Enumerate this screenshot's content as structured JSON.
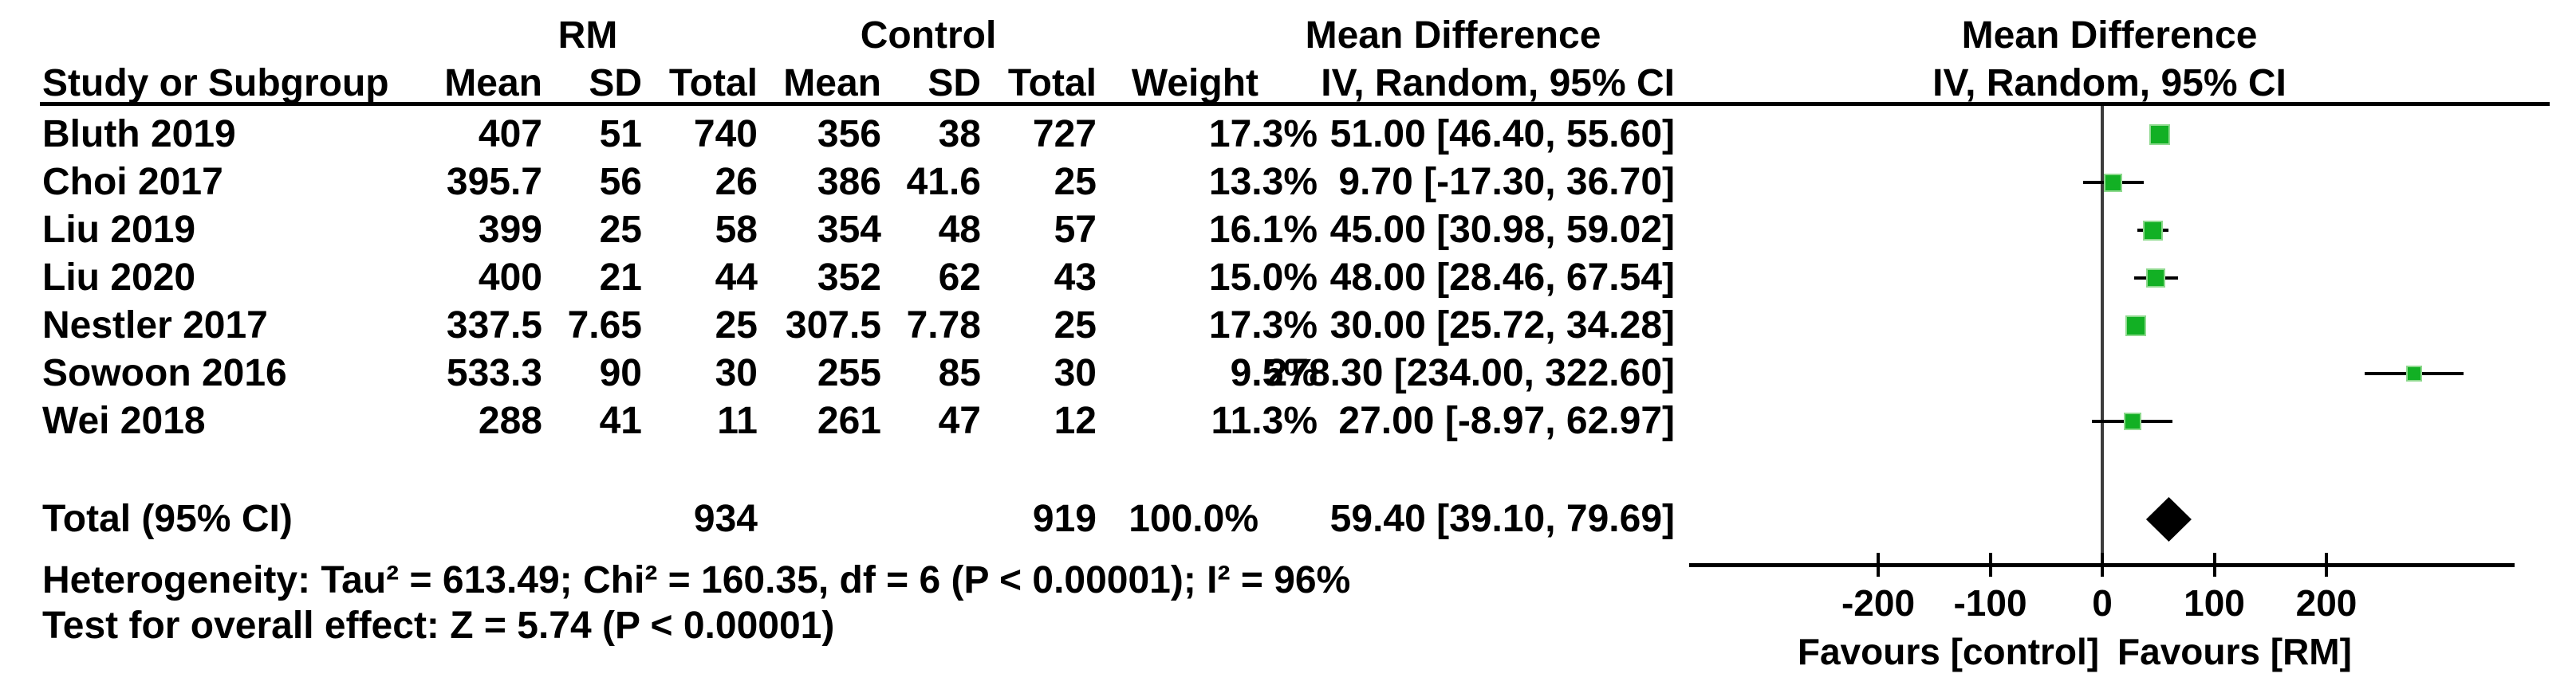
{
  "columns": {
    "study": "Study or Subgroup",
    "mean": "Mean",
    "sd": "SD",
    "total": "Total",
    "weight": "Weight",
    "effect": "Mean Difference",
    "method": "IV, Random, 95% CI"
  },
  "colors": {
    "marker_green": "#12b024",
    "diamond_black": "#000000",
    "text": "#000000",
    "zero_line_gray": "#3c3c3c"
  },
  "chart_data": {
    "type": "scatter",
    "subtype": "forest-plot",
    "effect_measure": "Mean Difference",
    "method": "IV, Random, 95% CI",
    "groups": [
      "RM",
      "Control"
    ],
    "x_axis": {
      "ticks": [
        -200,
        -100,
        0,
        100,
        200
      ],
      "range": [
        -369,
        368
      ],
      "label_left": "Favours [control]",
      "label_right": "Favours [RM]"
    },
    "studies": [
      {
        "name": "Bluth 2019",
        "rm": {
          "mean": "407",
          "sd": "51",
          "total": "740"
        },
        "control": {
          "mean": "356",
          "sd": "38",
          "total": "727"
        },
        "weight": "17.3%",
        "weight_value": 17.3,
        "ci_label": "51.00 [46.40, 55.60]",
        "estimate": 51.0,
        "ci_low": 46.4,
        "ci_high": 55.6
      },
      {
        "name": "Choi 2017",
        "rm": {
          "mean": "395.7",
          "sd": "56",
          "total": "26"
        },
        "control": {
          "mean": "386",
          "sd": "41.6",
          "total": "25"
        },
        "weight": "13.3%",
        "weight_value": 13.3,
        "ci_label": "9.70 [-17.30, 36.70]",
        "estimate": 9.7,
        "ci_low": -17.3,
        "ci_high": 36.7
      },
      {
        "name": "Liu 2019",
        "rm": {
          "mean": "399",
          "sd": "25",
          "total": "58"
        },
        "control": {
          "mean": "354",
          "sd": "48",
          "total": "57"
        },
        "weight": "16.1%",
        "weight_value": 16.1,
        "ci_label": "45.00 [30.98, 59.02]",
        "estimate": 45.0,
        "ci_low": 30.98,
        "ci_high": 59.02
      },
      {
        "name": "Liu 2020",
        "rm": {
          "mean": "400",
          "sd": "21",
          "total": "44"
        },
        "control": {
          "mean": "352",
          "sd": "62",
          "total": "43"
        },
        "weight": "15.0%",
        "weight_value": 15.0,
        "ci_label": "48.00 [28.46, 67.54]",
        "estimate": 48.0,
        "ci_low": 28.46,
        "ci_high": 67.54
      },
      {
        "name": "Nestler 2017",
        "rm": {
          "mean": "337.5",
          "sd": "7.65",
          "total": "25"
        },
        "control": {
          "mean": "307.5",
          "sd": "7.78",
          "total": "25"
        },
        "weight": "17.3%",
        "weight_value": 17.3,
        "ci_label": "30.00 [25.72, 34.28]",
        "estimate": 30.0,
        "ci_low": 25.72,
        "ci_high": 34.28
      },
      {
        "name": "Sowoon 2016",
        "rm": {
          "mean": "533.3",
          "sd": "90",
          "total": "30"
        },
        "control": {
          "mean": "255",
          "sd": "85",
          "total": "30"
        },
        "weight": "9.5%",
        "weight_value": 9.5,
        "ci_label": "278.30 [234.00, 322.60]",
        "estimate": 278.3,
        "ci_low": 234.0,
        "ci_high": 322.6
      },
      {
        "name": "Wei 2018",
        "rm": {
          "mean": "288",
          "sd": "41",
          "total": "11"
        },
        "control": {
          "mean": "261",
          "sd": "47",
          "total": "12"
        },
        "weight": "11.3%",
        "weight_value": 11.3,
        "ci_label": "27.00 [-8.97, 62.97]",
        "estimate": 27.0,
        "ci_low": -8.97,
        "ci_high": 62.97
      }
    ],
    "total": {
      "label": "Total (95% CI)",
      "rm_total": "934",
      "control_total": "919",
      "weight": "100.0%",
      "ci_label": "59.40 [39.10, 79.69]",
      "estimate": 59.4,
      "ci_low": 39.1,
      "ci_high": 79.69
    },
    "footnotes": {
      "heterogeneity": "Heterogeneity: Tau² = 613.49; Chi² = 160.35, df = 6 (P < 0.00001); I² = 96%",
      "overall_effect": "Test for overall effect: Z = 5.74 (P < 0.00001)"
    }
  }
}
